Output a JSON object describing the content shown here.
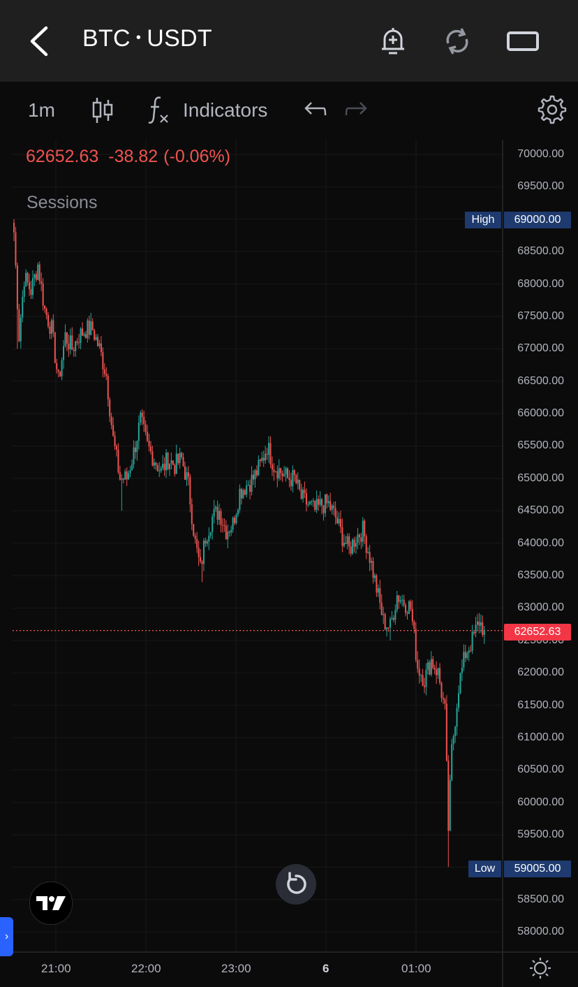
{
  "header": {
    "base": "BTC",
    "separator": "•",
    "quote": "USDT",
    "icons": [
      "back-arrow-icon",
      "alert-add-icon",
      "refresh-icon",
      "landscape-icon"
    ]
  },
  "toolbar": {
    "interval": "1m",
    "chart_type_icon": "candles-icon",
    "fx_icon": "fx-icon",
    "indicators_label": "Indicators",
    "undo_icon": "undo-icon",
    "redo_icon": "redo-icon",
    "settings_icon": "gear-icon"
  },
  "quote": {
    "last": "62652.63",
    "change": "-38.82",
    "change_pct": "(-0.06%)"
  },
  "sessions_label": "Sessions",
  "colors": {
    "up": "#26a69a",
    "down": "#ef5350",
    "background": "#0b0b0b",
    "grid": "#1c1c1c",
    "tag_blue": "#1e3a6e",
    "current_price": "#f23645"
  },
  "price_axis": {
    "labels": [
      "70000.00",
      "69500.00",
      "69000.00",
      "68500.00",
      "68000.00",
      "67500.00",
      "67000.00",
      "66500.00",
      "66000.00",
      "65500.00",
      "65000.00",
      "64500.00",
      "64000.00",
      "63500.00",
      "63000.00",
      "62500.00",
      "62000.00",
      "61500.00",
      "61000.00",
      "60500.00",
      "60000.00",
      "59500.00",
      "59000.00",
      "58500.00",
      "58000.00"
    ],
    "high_tag_label": "High",
    "high_tag_value": "69000.00",
    "low_tag_label": "Low",
    "low_tag_value": "59005.00",
    "current_value": "62652.63"
  },
  "time_axis": {
    "labels": [
      "21:00",
      "22:00",
      "23:00",
      "6",
      "01:00"
    ]
  },
  "chart_data": {
    "type": "candlestick",
    "interval": "1m",
    "symbol": "BTC • USDT",
    "ylim": [
      57800,
      70200
    ],
    "x_ticks": [
      "21:00",
      "22:00",
      "23:00",
      "6",
      "01:00"
    ],
    "path_anchors_close": [
      [
        0,
        68800
      ],
      [
        3,
        67200
      ],
      [
        6,
        68100
      ],
      [
        10,
        67900
      ],
      [
        14,
        68300
      ],
      [
        18,
        67600
      ],
      [
        22,
        67300
      ],
      [
        26,
        66500
      ],
      [
        30,
        67200
      ],
      [
        34,
        67000
      ],
      [
        38,
        67200
      ],
      [
        42,
        67300
      ],
      [
        46,
        67300
      ],
      [
        50,
        67000
      ],
      [
        54,
        66600
      ],
      [
        58,
        65600
      ],
      [
        62,
        65000
      ],
      [
        66,
        65000
      ],
      [
        70,
        65400
      ],
      [
        74,
        65900
      ],
      [
        78,
        65500
      ],
      [
        82,
        65300
      ],
      [
        86,
        65100
      ],
      [
        90,
        65300
      ],
      [
        94,
        65200
      ],
      [
        98,
        65300
      ],
      [
        102,
        64900
      ],
      [
        106,
        64000
      ],
      [
        109,
        63600
      ],
      [
        112,
        64100
      ],
      [
        116,
        64400
      ],
      [
        120,
        64500
      ],
      [
        124,
        64200
      ],
      [
        128,
        64300
      ],
      [
        132,
        64800
      ],
      [
        136,
        64900
      ],
      [
        140,
        65000
      ],
      [
        144,
        65200
      ],
      [
        148,
        65500
      ],
      [
        152,
        65200
      ],
      [
        156,
        65100
      ],
      [
        160,
        65000
      ],
      [
        164,
        65000
      ],
      [
        168,
        64700
      ],
      [
        172,
        64600
      ],
      [
        176,
        64500
      ],
      [
        180,
        64600
      ],
      [
        184,
        64600
      ],
      [
        188,
        64400
      ],
      [
        192,
        64100
      ],
      [
        196,
        63900
      ],
      [
        200,
        64100
      ],
      [
        204,
        64200
      ],
      [
        208,
        63800
      ],
      [
        212,
        63300
      ],
      [
        216,
        62800
      ],
      [
        220,
        62700
      ],
      [
        224,
        63200
      ],
      [
        228,
        63100
      ],
      [
        232,
        63000
      ],
      [
        236,
        62100
      ],
      [
        240,
        61900
      ],
      [
        244,
        62200
      ],
      [
        248,
        62000
      ],
      [
        252,
        61400
      ],
      [
        254,
        59600
      ],
      [
        256,
        60800
      ],
      [
        260,
        61800
      ],
      [
        264,
        62300
      ],
      [
        268,
        62500
      ],
      [
        272,
        62800
      ],
      [
        275,
        62652.63
      ]
    ],
    "session_high": 69000.0,
    "session_low": 59005.0,
    "last_price": 62652.63
  }
}
